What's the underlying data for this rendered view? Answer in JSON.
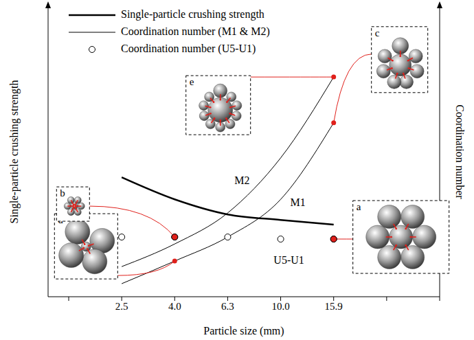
{
  "chart_data": {
    "type": "line",
    "x_label": "Particle size (mm)",
    "y_label": "Single-particle crushing strength",
    "y2_label": "Coordination number",
    "categories": [
      null,
      "2.5",
      "4.0",
      "6.3",
      "10.0",
      "15.9",
      null,
      null
    ],
    "ylim": [
      0,
      100
    ],
    "y2lim": [
      0,
      100
    ],
    "tick_labels": "x",
    "legend": "top-left",
    "legend_items": [
      {
        "label": "Single-particle crushing strength",
        "line_style": "thick"
      },
      {
        "label": "Coordination number (M1 & M2)",
        "line_style": "solid"
      },
      {
        "label": "Coordination number (U5-U1)",
        "marker": "circle"
      }
    ],
    "series": [
      {
        "name": "Single-particle crushing strength",
        "color": "#000000",
        "line_style": "thick",
        "values": [
          null,
          41.2,
          33.6,
          28.4,
          26.5,
          24.9,
          null,
          null
        ]
      },
      {
        "name": "M1",
        "color": "#000000",
        "line_style": "solid",
        "axis": "y2",
        "label_at": "10.0",
        "values": [
          null,
          4.5,
          12.3,
          20.6,
          33.6,
          60,
          null,
          null
        ]
      },
      {
        "name": "M2",
        "color": "#000000",
        "line_style": "solid",
        "axis": "y2",
        "label_at": "10.0",
        "values": [
          null,
          10.4,
          18.2,
          28.9,
          47.9,
          75.8,
          null,
          null
        ]
      },
      {
        "name": "U5-U1",
        "color": "#000000",
        "line_style": "none",
        "marker": "circle",
        "axis": "y2",
        "label_at": "10.0",
        "values": [
          null,
          20.6,
          20.6,
          20.6,
          19.9,
          19.9,
          null,
          null
        ]
      }
    ],
    "annotations": [
      {
        "label": "a",
        "series": "U5-U1",
        "category": "15.9"
      },
      {
        "label": "b",
        "series": "U5-U1",
        "category": "4.0"
      },
      {
        "label": "c",
        "series": "M1",
        "category": "15.9"
      },
      {
        "label": "d",
        "series": "M1",
        "category": "4.0"
      },
      {
        "label": "e",
        "series": "M2",
        "category": "15.9"
      }
    ]
  }
}
